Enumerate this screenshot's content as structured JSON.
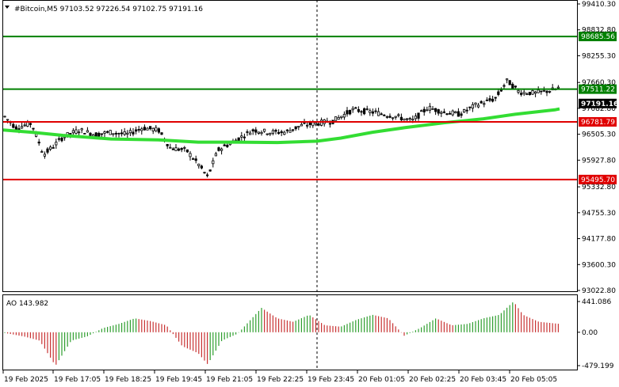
{
  "header": {
    "symbol_info": "#Bitcoin,M5  97103.52 97226.54 97102.75 97191.16"
  },
  "indicator": {
    "label": "AO 143.982"
  },
  "price_axis": {
    "ticks": [
      "99410.30",
      "98832.80",
      "98255.30",
      "97660.30",
      "97082.80",
      "96505.30",
      "95927.80",
      "95332.80",
      "94755.30",
      "94177.80",
      "93600.30",
      "93022.80"
    ]
  },
  "ao_axis": {
    "ticks": [
      "441.086",
      "0.00",
      "-479.199"
    ]
  },
  "time_axis": {
    "labels": [
      "19 Feb 2025",
      "19 Feb 17:05",
      "19 Feb 18:25",
      "19 Feb 19:45",
      "19 Feb 21:05",
      "19 Feb 22:25",
      "19 Feb 23:45",
      "20 Feb 01:05",
      "20 Feb 02:25",
      "20 Feb 03:45",
      "20 Feb 05:05"
    ]
  },
  "levels": [
    {
      "label": "98685.56",
      "value": 98685.56,
      "color": "#008000"
    },
    {
      "label": "97511.22",
      "value": 97511.22,
      "color": "#008000"
    },
    {
      "label": "96781.79",
      "value": 96781.79,
      "color": "#e00000"
    },
    {
      "label": "95495.70",
      "value": 95495.7,
      "color": "#e00000"
    }
  ],
  "current_price": {
    "label": "97191.16",
    "value": 97191.16
  },
  "colors": {
    "bull": "#000000",
    "bear": "#000000",
    "ma": "#33dd33",
    "ao_up": "#2e9e2e",
    "ao_down": "#c83232"
  }
}
